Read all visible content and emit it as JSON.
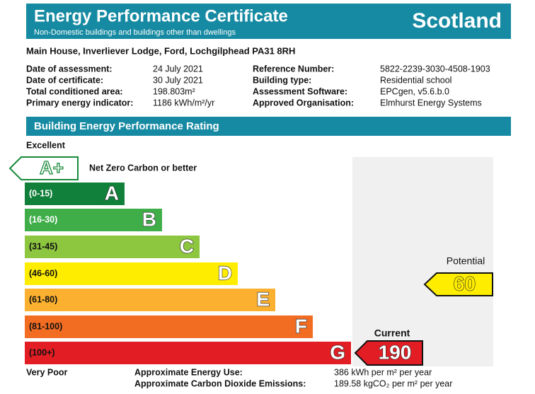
{
  "header": {
    "title": "Energy Performance Certificate",
    "subtitle": "Non-Domestic buildings and buildings other than dwellings",
    "region": "Scotland"
  },
  "address": "Main House, Inverliever Lodge, Ford, Lochgilphead PA31 8RH",
  "details": [
    {
      "label": "Date of assessment:",
      "value": "24 July 2021"
    },
    {
      "label": "Date of certificate:",
      "value": "30 July 2021"
    },
    {
      "label": "Total conditioned area:",
      "value": "198.803m²"
    },
    {
      "label": "Primary energy indicator:",
      "value": "1186 kWh/m²/yr"
    },
    {
      "label": "Reference Number:",
      "value": "5822-2239-3030-4508-1903"
    },
    {
      "label": "Building type:",
      "value": "Residential school"
    },
    {
      "label": "Assessment Software:",
      "value": "EPCgen, v5.6.b.0"
    },
    {
      "label": "Approved Organisation:",
      "value": "Elmhurst Energy Systems"
    }
  ],
  "rating": {
    "heading": "Building Energy Performance Rating",
    "top_label": "Excellent",
    "bottom_label": "Very Poor",
    "net_zero": {
      "letter": "A+",
      "label": "Net Zero Carbon or better",
      "color": "#1a8a3a"
    },
    "bands": [
      {
        "range": "(0-15)",
        "letter": "A",
        "color": "#11803a"
      },
      {
        "range": "(16-30)",
        "letter": "B",
        "color": "#3fae49"
      },
      {
        "range": "(31-45)",
        "letter": "C",
        "color": "#8dc63f"
      },
      {
        "range": "(46-60)",
        "letter": "D",
        "color": "#ffed00"
      },
      {
        "range": "(61-80)",
        "letter": "E",
        "color": "#fbb030"
      },
      {
        "range": "(81-100)",
        "letter": "F",
        "color": "#f26c22"
      },
      {
        "range": "(100+)",
        "letter": "G",
        "color": "#e31d24"
      }
    ],
    "potential": {
      "label": "Potential",
      "value": 60,
      "color": "#ffed00"
    },
    "current": {
      "label": "Current",
      "value": 190,
      "color": "#e31d24"
    }
  },
  "footer": [
    {
      "label": "Approximate Energy Use:",
      "value": "386 kWh per m² per year"
    },
    {
      "label": "Approximate Carbon Dioxide Emissions:",
      "value": "189.58 kgCO₂ per m² per year"
    }
  ]
}
